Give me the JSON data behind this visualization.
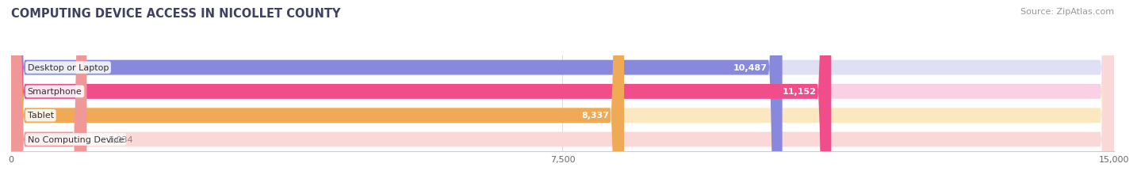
{
  "title": "COMPUTING DEVICE ACCESS IN NICOLLET COUNTY",
  "source": "Source: ZipAtlas.com",
  "categories": [
    "Desktop or Laptop",
    "Smartphone",
    "Tablet",
    "No Computing Device"
  ],
  "values": [
    10487,
    11152,
    8337,
    1034
  ],
  "bar_colors": [
    "#8888dd",
    "#f04d8a",
    "#f0aa55",
    "#f09898"
  ],
  "bar_bg_colors": [
    "#e0e0f5",
    "#fad0e4",
    "#fbe8c0",
    "#fbd8d8"
  ],
  "xlim": [
    0,
    15000
  ],
  "xticks": [
    0,
    7500,
    15000
  ],
  "xtick_labels": [
    "0",
    "7,500",
    "15,000"
  ],
  "value_label_color_inside": "#ffffff",
  "value_label_color_outside": "#888888",
  "background_color": "#ffffff",
  "bar_height": 0.62,
  "title_fontsize": 10.5,
  "source_fontsize": 8,
  "label_fontsize": 8,
  "value_fontsize": 8,
  "tick_fontsize": 8
}
